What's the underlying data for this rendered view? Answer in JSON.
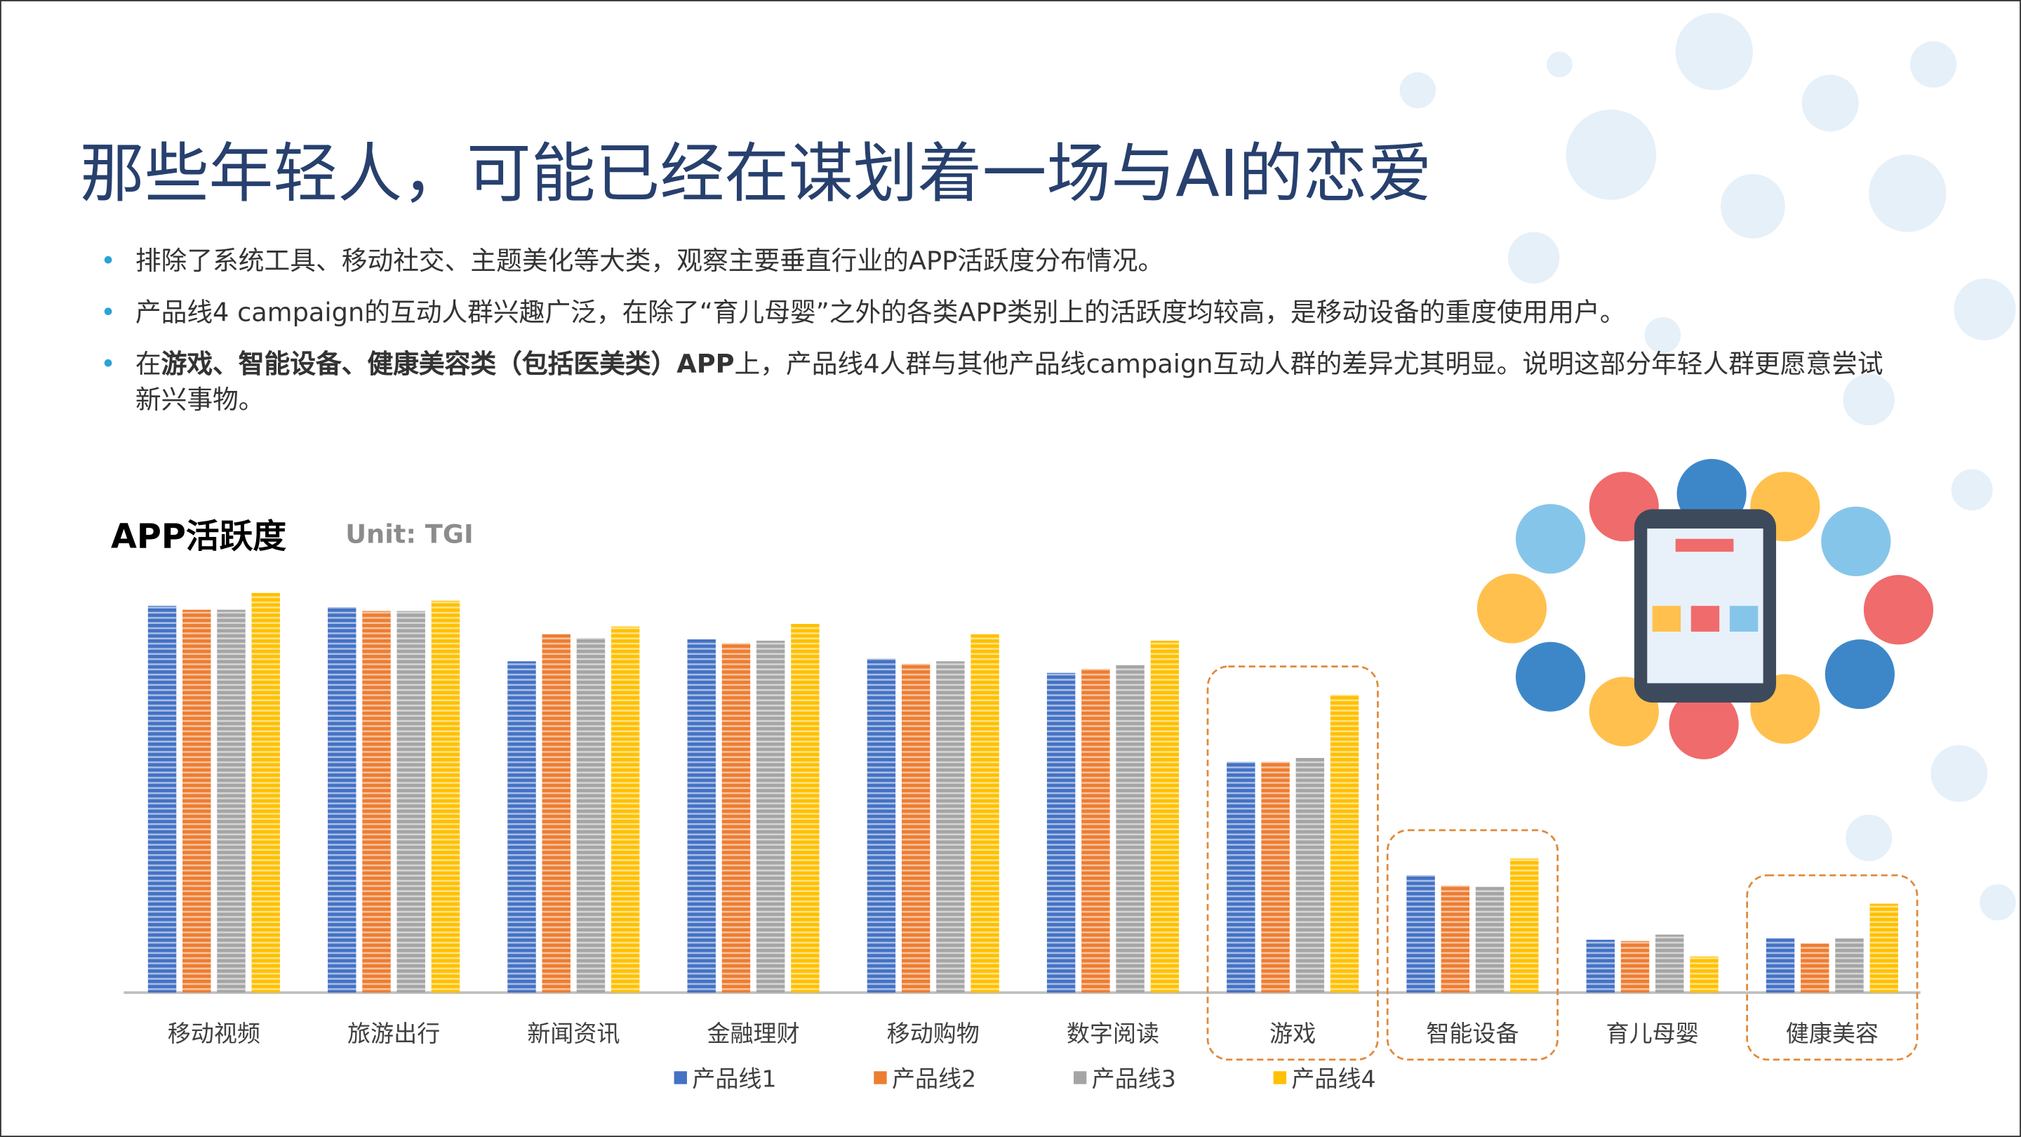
{
  "title": "那些年轻人，可能已经在谋划着一场与AI的恋爱",
  "bullets": [
    [
      {
        "text": "排除了系统工具、移动社交、主题美化等大类，观察主要垂直行业的APP活跃度分布情况。",
        "bold": false
      }
    ],
    [
      {
        "text": "产品线4 campaign的互动人群兴趣广泛，在除了“育儿母婴”之外的各类APP类别上的活跃度均较高，是移动设备的重度使用用户。",
        "bold": false
      }
    ],
    [
      {
        "text": "在",
        "bold": false
      },
      {
        "text": "游戏、智能设备、健康美容类（包括医美类）APP",
        "bold": true
      },
      {
        "text": "上，产品线4人群与其他产品线campaign互动人群的差异尤其明显。说明这部分年轻人群更愿意尝试新兴事物。",
        "bold": false
      }
    ]
  ],
  "chart_data": {
    "type": "bar",
    "title": "APP活跃度",
    "subtitle": "Unit: TGI",
    "categories": [
      "移动视频",
      "旅游出行",
      "新闻资讯",
      "金融理财",
      "移动购物",
      "数字阅读",
      "游戏",
      "智能设备",
      "育儿母婴",
      "健康美容"
    ],
    "series": [
      {
        "name": "产品线1",
        "color": "#4472c4",
        "values": [
          300,
          299,
          257,
          274,
          259,
          248,
          179,
          91,
          41,
          42
        ]
      },
      {
        "name": "产品线2",
        "color": "#ed7d31",
        "values": [
          297,
          296,
          278,
          271,
          255,
          251,
          179,
          83,
          40,
          38
        ]
      },
      {
        "name": "产品线3",
        "color": "#a5a5a5",
        "values": [
          297,
          296,
          275,
          273,
          257,
          254,
          182,
          82,
          45,
          42
        ]
      },
      {
        "name": "产品线4",
        "color": "#ffc000",
        "values": [
          310,
          304,
          284,
          286,
          278,
          273,
          231,
          104,
          28,
          69
        ]
      }
    ],
    "ylim": [
      0,
      320
    ],
    "highlight": [
      6,
      7,
      9
    ],
    "highlight_color": "#e08a3a"
  }
}
